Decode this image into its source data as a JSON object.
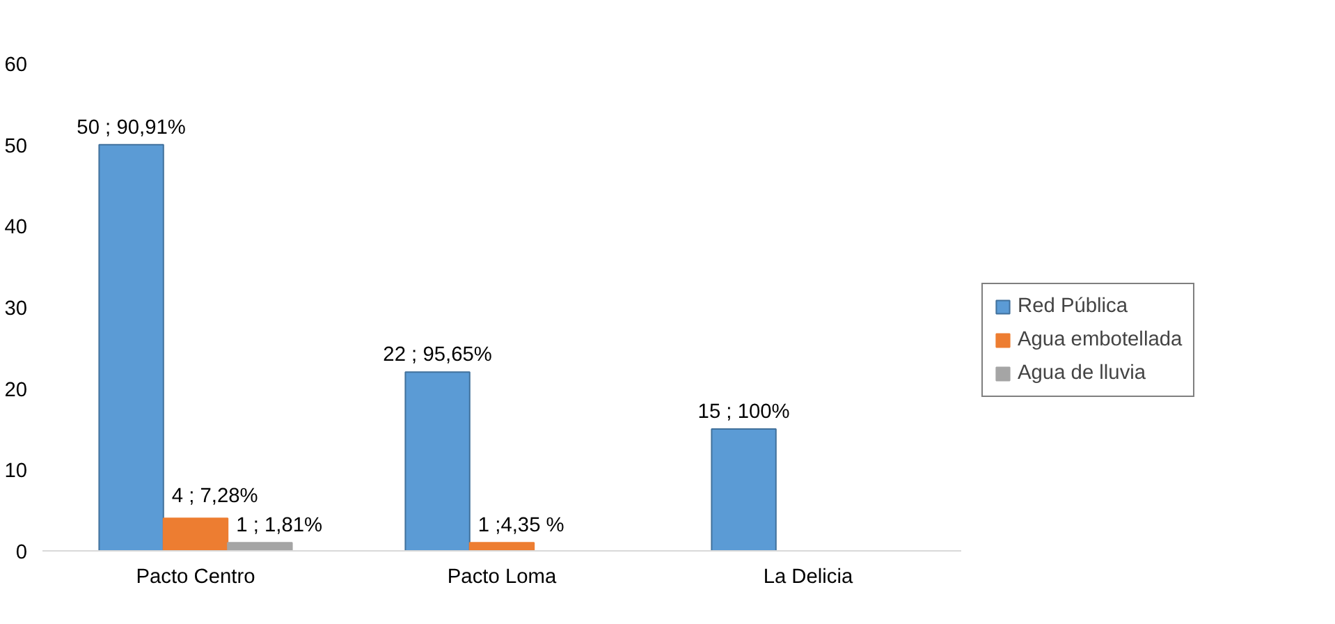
{
  "chart_data": {
    "type": "bar",
    "categories": [
      "Pacto Centro",
      "Pacto Loma",
      "La Delicia"
    ],
    "series": [
      {
        "name": "Red Pública",
        "color": "#5b9bd5",
        "values": [
          50,
          22,
          15
        ],
        "value_labels": [
          "50 ; 90,91%",
          "22 ; 95,65%",
          "15 ; 100%"
        ]
      },
      {
        "name": "Agua embotellada",
        "color": "#ed7d31",
        "values": [
          4,
          1,
          null
        ],
        "value_labels": [
          "4 ; 7,28%",
          "1 ;4,35 %",
          null
        ]
      },
      {
        "name": "Agua de lluvia",
        "color": "#a5a5a5",
        "values": [
          1,
          null,
          null
        ],
        "value_labels": [
          "1 ; 1,81%",
          null,
          null
        ]
      }
    ],
    "ylim": [
      0,
      60
    ],
    "yticks": [
      0,
      10,
      20,
      30,
      40,
      50,
      60
    ],
    "grid": false,
    "legend": "right"
  }
}
